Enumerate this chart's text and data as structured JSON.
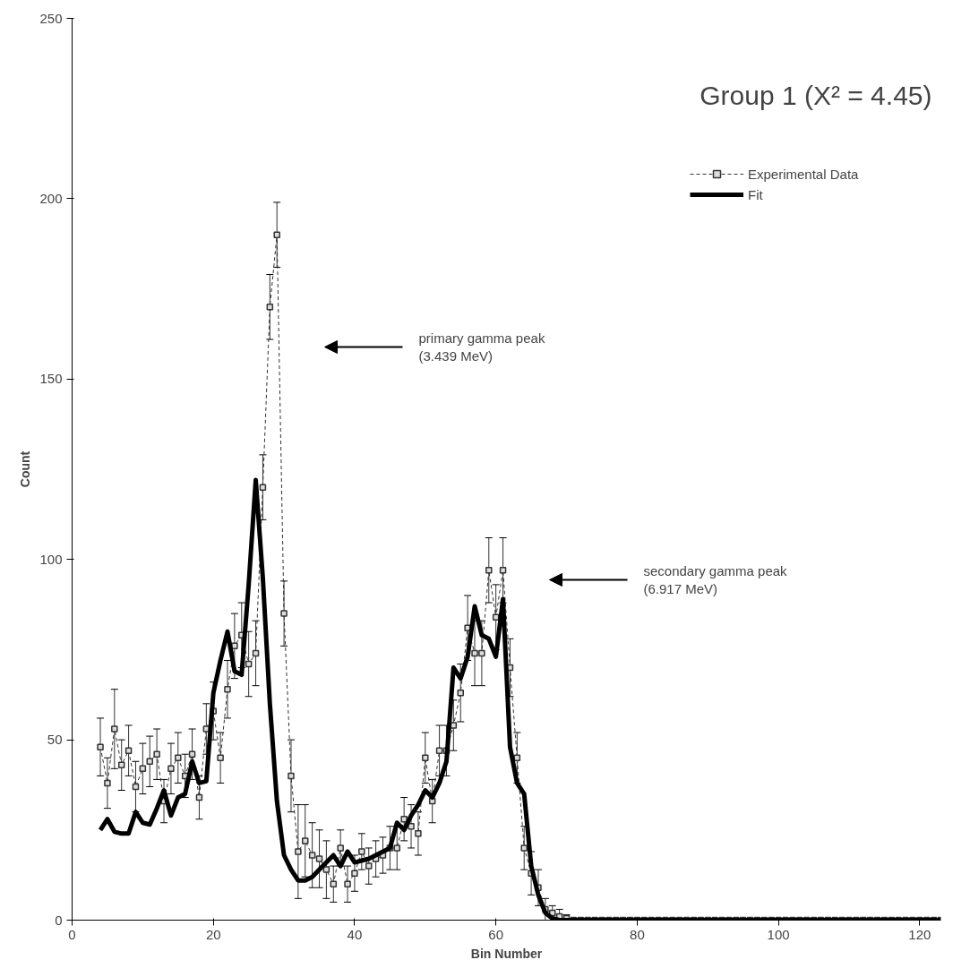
{
  "chart_data": {
    "type": "line",
    "title": "Group 1 (X² = 4.45)",
    "xlabel": "Bin Number",
    "ylabel": "Count",
    "xlim": [
      0,
      123
    ],
    "xticks": [
      0,
      20,
      40,
      60,
      80,
      100,
      120
    ],
    "ylim": [
      0,
      250
    ],
    "yticks": [
      0,
      50,
      100,
      150,
      200,
      250
    ],
    "grid": false,
    "legend": "top right",
    "annotations": [
      "primary gamma peak\n(3.439 MeV)",
      "secondary gamma peak\n(6.917 MeV)"
    ],
    "series": [
      {
        "name": "Experimental Data",
        "color": "#333333",
        "marker": "square",
        "line_style": "dashed",
        "x": [
          4,
          5,
          6,
          7,
          8,
          9,
          10,
          11,
          12,
          13,
          14,
          15,
          16,
          17,
          18,
          19,
          20,
          21,
          22,
          23,
          24,
          25,
          26,
          27,
          28,
          29,
          30,
          31,
          32,
          33,
          34,
          35,
          36,
          37,
          38,
          39,
          40,
          41,
          42,
          43,
          44,
          45,
          46,
          47,
          48,
          49,
          50,
          51,
          52,
          53,
          54,
          55,
          56,
          57,
          58,
          59,
          60,
          61,
          62,
          63,
          64,
          65,
          66,
          67,
          68,
          69,
          70,
          71,
          72,
          73,
          74,
          75,
          76,
          77,
          78,
          79,
          80,
          81,
          82,
          83,
          84,
          85,
          86,
          87,
          88,
          89,
          90,
          91,
          92,
          93,
          94,
          95,
          96,
          97,
          98,
          99,
          100,
          101,
          102,
          103,
          104,
          105,
          106,
          107,
          108,
          109,
          110,
          111,
          112,
          113,
          114,
          115,
          116,
          117,
          118,
          119,
          120,
          121,
          122,
          123
        ],
        "values": [
          48,
          38,
          53,
          43,
          47,
          37,
          42,
          44,
          46,
          33,
          42,
          45,
          40,
          46,
          34,
          53,
          58,
          45,
          64,
          76,
          79,
          71,
          74,
          120,
          170,
          190,
          85,
          40,
          19,
          22,
          18,
          17,
          14,
          10,
          20,
          10,
          13,
          19,
          15,
          17,
          18,
          20,
          20,
          28,
          26,
          24,
          45,
          33,
          47,
          47,
          54,
          63,
          81,
          74,
          74,
          97,
          84,
          97,
          70,
          45,
          20,
          13,
          9,
          3,
          2,
          1,
          0.5,
          0,
          0,
          0,
          0,
          0,
          0,
          0,
          0,
          0,
          0,
          0,
          0,
          0,
          0,
          0,
          0,
          0,
          0,
          0,
          0,
          0,
          0,
          0,
          0,
          0,
          0,
          0,
          0,
          0,
          0,
          0,
          0,
          0,
          0,
          0,
          0,
          0,
          0,
          0,
          0,
          0,
          0,
          0,
          0,
          0,
          0,
          0,
          0,
          0,
          0,
          0,
          0,
          0
        ],
        "errors": [
          8,
          7,
          11,
          7,
          7,
          7,
          7,
          7,
          7,
          6,
          7,
          7,
          6,
          7,
          6,
          7,
          8,
          7,
          8,
          9,
          9,
          9,
          9,
          9,
          9,
          9,
          9,
          10,
          13,
          10,
          9,
          8,
          8,
          5,
          5,
          5,
          5,
          5,
          5,
          5,
          5,
          6,
          6,
          6,
          6,
          6,
          7,
          6,
          7,
          7,
          7,
          8,
          9,
          9,
          9,
          9,
          9,
          9,
          8,
          7,
          6,
          6,
          5,
          3,
          2,
          2,
          1,
          null,
          null,
          null,
          null,
          null,
          null,
          null,
          null,
          null,
          null,
          null,
          null,
          null,
          null,
          null,
          null,
          null,
          null,
          null,
          null,
          null,
          null,
          null,
          null,
          null,
          null,
          null,
          null,
          null,
          null,
          null,
          null,
          null,
          null,
          null,
          null,
          null,
          null,
          null,
          null,
          null,
          null,
          null,
          null,
          null,
          null,
          null,
          null,
          null,
          null,
          null,
          null,
          null
        ]
      },
      {
        "name": "Fit",
        "color": "#000000",
        "marker": "none",
        "line_style": "solid",
        "x": [
          4,
          5,
          6,
          7,
          8,
          9,
          10,
          11,
          12,
          13,
          14,
          15,
          16,
          17,
          18,
          19,
          20,
          21,
          22,
          23,
          24,
          25,
          26,
          27,
          28,
          29,
          30,
          31,
          32,
          33,
          34,
          35,
          36,
          37,
          38,
          39,
          40,
          41,
          42,
          43,
          44,
          45,
          46,
          47,
          48,
          49,
          50,
          51,
          52,
          53,
          54,
          55,
          56,
          57,
          58,
          59,
          60,
          61,
          62,
          63,
          64,
          65,
          66,
          67,
          68,
          69,
          123
        ],
        "values": [
          25,
          28,
          24.5,
          24,
          24,
          30,
          27,
          26.5,
          31,
          36,
          29,
          34,
          35,
          44,
          38,
          38.5,
          63,
          72,
          80,
          69,
          68,
          93,
          122,
          95,
          60,
          33,
          18,
          14,
          11,
          11,
          12,
          14,
          16,
          18,
          15,
          19,
          16,
          16.5,
          17,
          18,
          19,
          20,
          27,
          25,
          29,
          32,
          36,
          34,
          38,
          44,
          70,
          67,
          73,
          87,
          79,
          78,
          73,
          89,
          48,
          38,
          35,
          15,
          7,
          2,
          0.5,
          0,
          0
        ]
      }
    ]
  }
}
